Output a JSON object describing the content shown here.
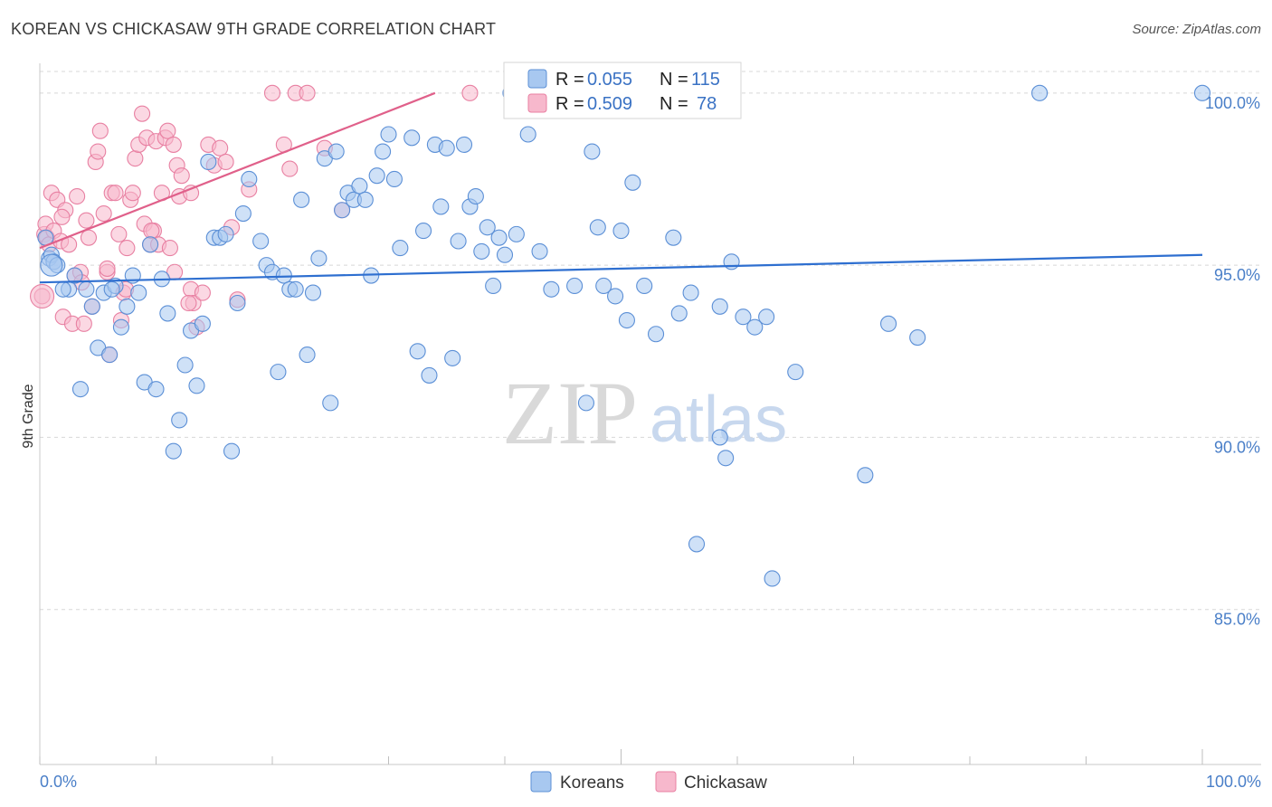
{
  "title": "KOREAN VS CHICKASAW 9TH GRADE CORRELATION CHART",
  "source": "Source: ZipAtlas.com",
  "watermark": {
    "part1": "ZIP",
    "part2": "atlas"
  },
  "legend": {
    "rows": [
      {
        "r_label": "R =",
        "r_value": "0.055",
        "n_label": "N =",
        "n_value": "115"
      },
      {
        "r_label": "R =",
        "r_value": "0.509",
        "n_label": "N =",
        "n_value": "78"
      }
    ]
  },
  "bottom_legend": [
    "Koreans",
    "Chickasaw"
  ],
  "colors": {
    "koreans_fill": "#a8c8f0",
    "koreans_stroke": "#5b8fd6",
    "koreans_line": "#2e6fd0",
    "chickasaw_fill": "#f7b8cc",
    "chickasaw_stroke": "#e880a2",
    "chickasaw_line": "#e0608a",
    "grid": "#d8d8d8",
    "tick_label": "#4a7fc8"
  },
  "chart_data": {
    "type": "scatter",
    "title": "KOREAN VS CHICKASAW 9TH GRADE CORRELATION CHART",
    "xlabel": "",
    "ylabel": "9th Grade",
    "xlim": [
      0,
      100
    ],
    "ylim": [
      80.5,
      100.6
    ],
    "x_tick_labels": [
      "0.0%",
      "100.0%"
    ],
    "y_ticks": [
      85,
      90,
      95,
      100
    ],
    "y_tick_labels": [
      "85.0%",
      "90.0%",
      "95.0%",
      "100.0%"
    ],
    "grid": "horizontal dashed",
    "legend_position": "top-center",
    "series": [
      {
        "name": "Koreans",
        "R": 0.055,
        "N": 115,
        "trend": [
          [
            0,
            94.5
          ],
          [
            100,
            95.3
          ]
        ],
        "points": [
          [
            0.5,
            95.8
          ],
          [
            0.8,
            95.2
          ],
          [
            1.0,
            95.3
          ],
          [
            1.2,
            95.1
          ],
          [
            2.5,
            94.3
          ],
          [
            3.5,
            91.4
          ],
          [
            4.0,
            94.3
          ],
          [
            4.5,
            93.8
          ],
          [
            5.0,
            92.6
          ],
          [
            5.5,
            94.2
          ],
          [
            6.0,
            92.4
          ],
          [
            6.5,
            94.4
          ],
          [
            7.0,
            93.2
          ],
          [
            7.5,
            93.8
          ],
          [
            8.0,
            94.7
          ],
          [
            8.5,
            94.2
          ],
          [
            9.0,
            91.6
          ],
          [
            9.5,
            95.6
          ],
          [
            10.0,
            91.4
          ],
          [
            10.5,
            94.6
          ],
          [
            11.0,
            93.6
          ],
          [
            11.5,
            89.6
          ],
          [
            12.0,
            90.5
          ],
          [
            12.5,
            92.1
          ],
          [
            13.0,
            93.1
          ],
          [
            13.5,
            91.5
          ],
          [
            14.0,
            93.3
          ],
          [
            14.5,
            98.0
          ],
          [
            15.0,
            95.8
          ],
          [
            15.5,
            95.8
          ],
          [
            16.0,
            95.9
          ],
          [
            16.5,
            89.6
          ],
          [
            17.0,
            93.9
          ],
          [
            17.5,
            96.5
          ],
          [
            18.0,
            97.5
          ],
          [
            19.0,
            95.7
          ],
          [
            19.5,
            95.0
          ],
          [
            20.0,
            94.8
          ],
          [
            20.5,
            91.9
          ],
          [
            21.0,
            94.7
          ],
          [
            21.5,
            94.3
          ],
          [
            22.0,
            94.3
          ],
          [
            22.5,
            96.9
          ],
          [
            23.0,
            92.4
          ],
          [
            23.5,
            94.2
          ],
          [
            24.0,
            95.2
          ],
          [
            24.5,
            98.1
          ],
          [
            25.0,
            91.0
          ],
          [
            25.5,
            98.3
          ],
          [
            26.0,
            96.6
          ],
          [
            26.5,
            97.1
          ],
          [
            27.0,
            96.9
          ],
          [
            27.5,
            97.3
          ],
          [
            28.0,
            96.9
          ],
          [
            28.5,
            94.7
          ],
          [
            29.0,
            97.6
          ],
          [
            29.5,
            98.3
          ],
          [
            30.0,
            98.8
          ],
          [
            30.5,
            97.5
          ],
          [
            31.0,
            95.5
          ],
          [
            32.0,
            98.7
          ],
          [
            32.5,
            92.5
          ],
          [
            33.0,
            96.0
          ],
          [
            33.5,
            91.8
          ],
          [
            34.0,
            98.5
          ],
          [
            34.5,
            96.7
          ],
          [
            35.0,
            98.4
          ],
          [
            35.5,
            92.3
          ],
          [
            36.0,
            95.7
          ],
          [
            36.5,
            98.5
          ],
          [
            37.0,
            96.7
          ],
          [
            37.5,
            97.0
          ],
          [
            38.0,
            95.4
          ],
          [
            38.5,
            96.1
          ],
          [
            39.0,
            94.4
          ],
          [
            39.5,
            95.8
          ],
          [
            40.0,
            95.3
          ],
          [
            40.5,
            100.0
          ],
          [
            41.0,
            95.9
          ],
          [
            42.0,
            98.8
          ],
          [
            43.0,
            95.4
          ],
          [
            44.0,
            94.3
          ],
          [
            46.0,
            94.4
          ],
          [
            47.0,
            91.0
          ],
          [
            47.5,
            98.3
          ],
          [
            48.0,
            96.1
          ],
          [
            48.5,
            94.4
          ],
          [
            49.5,
            94.1
          ],
          [
            50.0,
            96.0
          ],
          [
            50.5,
            93.4
          ],
          [
            51.0,
            97.4
          ],
          [
            52.0,
            94.4
          ],
          [
            53.0,
            93.0
          ],
          [
            54.5,
            95.8
          ],
          [
            55.0,
            93.6
          ],
          [
            56.5,
            86.9
          ],
          [
            56.0,
            94.2
          ],
          [
            58.5,
            90.0
          ],
          [
            59.0,
            89.4
          ],
          [
            58.5,
            93.8
          ],
          [
            59.5,
            95.1
          ],
          [
            60.5,
            93.5
          ],
          [
            61.5,
            93.2
          ],
          [
            62.5,
            93.5
          ],
          [
            63.0,
            85.9
          ],
          [
            65.0,
            91.9
          ],
          [
            71.0,
            88.9
          ],
          [
            73.0,
            93.3
          ],
          [
            75.5,
            92.9
          ],
          [
            86.0,
            100.0
          ],
          [
            100.0,
            100.0
          ],
          [
            1.5,
            95.0
          ],
          [
            2.0,
            94.3
          ],
          [
            3.0,
            94.7
          ],
          [
            6.2,
            94.3
          ]
        ]
      },
      {
        "name": "Chickasaw",
        "R": 0.509,
        "N": 78,
        "trend": [
          [
            0,
            95.5
          ],
          [
            34,
            100.0
          ]
        ],
        "points": [
          [
            0.2,
            94.1
          ],
          [
            0.4,
            95.9
          ],
          [
            0.5,
            96.2
          ],
          [
            0.6,
            95.8
          ],
          [
            0.8,
            95.6
          ],
          [
            1.0,
            97.1
          ],
          [
            1.2,
            96.0
          ],
          [
            1.5,
            96.9
          ],
          [
            1.8,
            95.7
          ],
          [
            2.0,
            93.5
          ],
          [
            2.2,
            96.6
          ],
          [
            2.5,
            95.6
          ],
          [
            2.8,
            93.3
          ],
          [
            3.0,
            94.7
          ],
          [
            3.2,
            97.0
          ],
          [
            3.5,
            94.8
          ],
          [
            3.8,
            93.3
          ],
          [
            4.0,
            96.3
          ],
          [
            4.2,
            95.8
          ],
          [
            4.5,
            93.8
          ],
          [
            4.8,
            98.0
          ],
          [
            5.0,
            98.3
          ],
          [
            5.2,
            98.9
          ],
          [
            5.5,
            96.5
          ],
          [
            5.8,
            94.8
          ],
          [
            6.0,
            92.4
          ],
          [
            6.2,
            97.1
          ],
          [
            6.5,
            97.1
          ],
          [
            6.8,
            95.9
          ],
          [
            7.0,
            93.4
          ],
          [
            7.2,
            94.2
          ],
          [
            7.5,
            95.5
          ],
          [
            7.8,
            96.9
          ],
          [
            8.0,
            97.1
          ],
          [
            8.2,
            98.1
          ],
          [
            8.5,
            98.5
          ],
          [
            8.8,
            99.4
          ],
          [
            9.0,
            96.2
          ],
          [
            9.2,
            98.7
          ],
          [
            9.5,
            95.6
          ],
          [
            9.8,
            96.0
          ],
          [
            10.0,
            98.6
          ],
          [
            10.2,
            95.6
          ],
          [
            10.5,
            97.1
          ],
          [
            10.8,
            98.7
          ],
          [
            11.0,
            98.9
          ],
          [
            11.2,
            95.5
          ],
          [
            11.5,
            98.5
          ],
          [
            11.8,
            97.9
          ],
          [
            12.0,
            97.0
          ],
          [
            12.2,
            97.6
          ],
          [
            13.0,
            94.3
          ],
          [
            13.2,
            93.9
          ],
          [
            13.5,
            93.2
          ],
          [
            14.5,
            98.5
          ],
          [
            15.0,
            97.9
          ],
          [
            15.5,
            98.4
          ],
          [
            16.0,
            98.0
          ],
          [
            16.5,
            96.1
          ],
          [
            17.0,
            94.0
          ],
          [
            18.0,
            97.2
          ],
          [
            20.0,
            100.0
          ],
          [
            21.0,
            98.5
          ],
          [
            22.0,
            100.0
          ],
          [
            23.0,
            100.0
          ],
          [
            24.5,
            98.4
          ],
          [
            26.0,
            96.6
          ],
          [
            14.0,
            94.2
          ],
          [
            21.5,
            97.8
          ],
          [
            5.8,
            94.9
          ],
          [
            3.6,
            94.5
          ],
          [
            7.4,
            94.3
          ],
          [
            12.8,
            93.9
          ],
          [
            1.9,
            96.4
          ],
          [
            11.6,
            94.8
          ],
          [
            9.6,
            96.0
          ],
          [
            13.0,
            97.1
          ],
          [
            37.0,
            100.0
          ]
        ]
      }
    ]
  }
}
